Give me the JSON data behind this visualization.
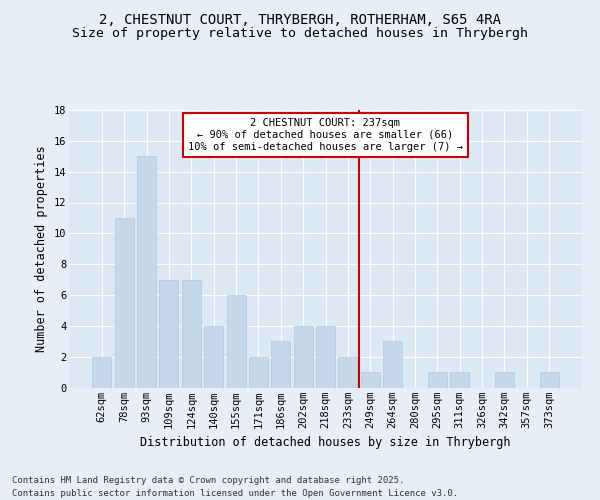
{
  "title_line1": "2, CHESTNUT COURT, THRYBERGH, ROTHERHAM, S65 4RA",
  "title_line2": "Size of property relative to detached houses in Thrybergh",
  "xlabel": "Distribution of detached houses by size in Thrybergh",
  "ylabel": "Number of detached properties",
  "categories": [
    "62sqm",
    "78sqm",
    "93sqm",
    "109sqm",
    "124sqm",
    "140sqm",
    "155sqm",
    "171sqm",
    "186sqm",
    "202sqm",
    "218sqm",
    "233sqm",
    "249sqm",
    "264sqm",
    "280sqm",
    "295sqm",
    "311sqm",
    "326sqm",
    "342sqm",
    "357sqm",
    "373sqm"
  ],
  "values": [
    2,
    11,
    15,
    7,
    7,
    4,
    6,
    2,
    3,
    4,
    4,
    2,
    1,
    3,
    0,
    1,
    1,
    0,
    1,
    0,
    1
  ],
  "bar_color": "#c5d8ea",
  "bar_edge_color": "#b0c8de",
  "vline_index": 11.5,
  "vline_color": "#cc0000",
  "annotation_text": "2 CHESTNUT COURT: 237sqm\n← 90% of detached houses are smaller (66)\n10% of semi-detached houses are larger (7) →",
  "annotation_box_color": "#ffffff",
  "annotation_edge_color": "#cc0000",
  "ylim": [
    0,
    18
  ],
  "yticks": [
    0,
    2,
    4,
    6,
    8,
    10,
    12,
    14,
    16,
    18
  ],
  "bg_color": "#e8eef8",
  "plot_bg_color": "#dde8f5",
  "footer_line1": "Contains HM Land Registry data © Crown copyright and database right 2025.",
  "footer_line2": "Contains public sector information licensed under the Open Government Licence v3.0.",
  "title_fontsize": 10,
  "subtitle_fontsize": 9.5,
  "axis_label_fontsize": 8.5,
  "tick_fontsize": 7.5,
  "annotation_fontsize": 7.5,
  "footer_fontsize": 6.5
}
